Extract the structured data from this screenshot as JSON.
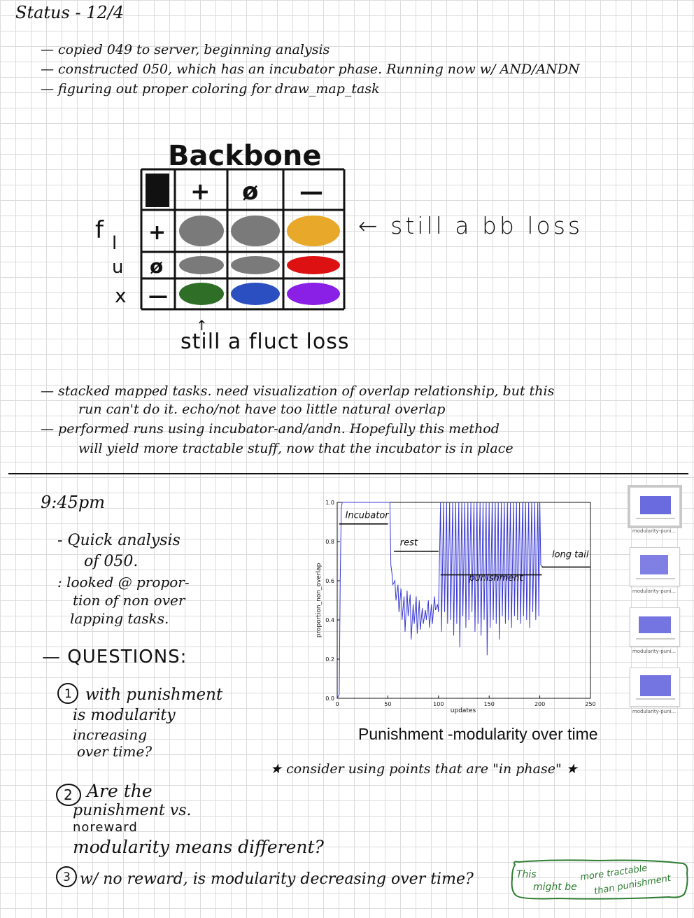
{
  "header": {
    "title": "Status - 12/4"
  },
  "status_notes": [
    "— copied 049 to server, beginning analysis",
    "— constructed 050, which has an incubator phase. Running now w/ AND/ANDN",
    "— figuring out proper coloring for draw_map_task"
  ],
  "grid_figure": {
    "title": "Backbone",
    "column_headers": [
      "+",
      "ø",
      "—"
    ],
    "row_label": "flux",
    "row_label_letters": [
      "f",
      "l",
      "u",
      "x"
    ],
    "row_headers": [
      "+",
      "ø",
      "—"
    ],
    "cell_colors": [
      [
        "#7a7a7a",
        "#7a7a7a",
        "#e8a92a"
      ],
      [
        "#7a7a7a",
        "#7a7a7a",
        "#dd1111"
      ],
      [
        "#2e6e26",
        "#2b4fc0",
        "#8a1fe6"
      ]
    ],
    "annotation_right": "← still a bb loss",
    "annotation_below": "still a fluct loss",
    "arrow_below": "↑"
  },
  "mid_notes": [
    "— stacked mapped tasks. need visualization of overlap relationship, but this",
    "run can't do it. echo/not have too little natural overlap",
    "— performed runs using incubator-and/andn. Hopefully this method",
    "will yield more tractable stuff, now that the incubator is in place"
  ],
  "evening": {
    "time": "9:45pm",
    "analysis_lines": [
      "- Quick analysis",
      "of 050.",
      ": looked @ propor-",
      "tion of non over",
      "lapping tasks."
    ],
    "questions_heading": "— QUESTIONS:",
    "questions": [
      {
        "num": "1",
        "lines": [
          "with punishment",
          "is modularity",
          "increasing",
          "over time?"
        ]
      },
      {
        "num": "2",
        "lines": [
          "Are the",
          "punishment vs.",
          "noreward",
          "modularity means different?"
        ]
      },
      {
        "num": "3",
        "lines": [
          "w/ no reward, is modularity decreasing over time?"
        ]
      }
    ],
    "consider_note": "★ consider using points that are \"in phase\" ★",
    "bubble_note": [
      "This",
      "might be",
      "more tractable",
      "than punishment"
    ],
    "bubble_color": "#2e7d32"
  },
  "thumbnails": [
    {
      "label": "modularity-puni...",
      "selected": true
    },
    {
      "label": "modularity-puni...",
      "selected": false
    },
    {
      "label": "modularity-puni...",
      "selected": false
    },
    {
      "label": "modularity-puni...",
      "selected": false
    }
  ],
  "chart_caption": "Punishment -modularity over time",
  "chart_data": {
    "type": "line",
    "title": "",
    "xlabel": "updates",
    "ylabel": "proportion_non_overlap",
    "xlim": [
      0,
      250
    ],
    "ylim": [
      0.0,
      1.0
    ],
    "xticks": [
      0,
      50,
      100,
      150,
      200,
      250
    ],
    "yticks": [
      0.0,
      0.2,
      0.4,
      0.6,
      0.8,
      1.0
    ],
    "ytick_labels": [
      "0.0",
      "0.2",
      "0.4",
      "0.6",
      "0.8",
      "1.0"
    ],
    "grid": false,
    "series_color": "#3a3ad6",
    "series": [
      {
        "x": [
          0,
          2,
          3,
          4,
          5,
          6,
          10,
          20,
          30,
          40,
          50,
          52,
          53,
          54,
          55,
          57,
          58,
          60,
          61,
          63,
          64,
          66,
          67,
          69,
          70,
          72,
          73,
          75,
          76,
          78,
          79,
          81,
          82,
          84,
          85,
          87,
          88,
          90,
          91,
          93,
          94,
          96,
          97,
          99,
          100,
          102,
          103,
          105,
          106,
          108,
          109,
          111,
          112,
          114,
          115,
          117,
          118,
          120,
          121,
          123,
          124,
          126,
          127,
          129,
          130,
          132,
          133,
          135,
          136,
          138,
          139,
          141,
          142,
          144,
          145,
          147,
          148,
          150,
          151,
          153,
          154,
          156,
          157,
          159,
          160,
          162,
          163,
          165,
          166,
          168,
          169,
          171,
          172,
          174,
          175,
          177,
          178,
          180,
          181,
          183,
          184,
          186,
          187,
          189,
          190,
          192,
          193,
          195,
          196,
          198,
          199,
          200,
          201,
          203,
          205,
          210,
          215,
          220,
          225,
          230,
          235,
          240,
          245,
          250
        ],
        "y": [
          0.0,
          0.02,
          0.6,
          0.97,
          1.0,
          1.0,
          1.0,
          1.0,
          1.0,
          1.0,
          1.0,
          1.0,
          0.68,
          0.64,
          0.58,
          0.6,
          0.5,
          0.58,
          0.44,
          0.56,
          0.4,
          0.52,
          0.34,
          0.55,
          0.42,
          0.53,
          0.3,
          0.48,
          0.38,
          0.52,
          0.33,
          0.5,
          0.35,
          0.46,
          0.38,
          0.45,
          0.4,
          0.5,
          0.36,
          0.48,
          0.38,
          0.52,
          0.45,
          0.48,
          0.44,
          1.0,
          0.34,
          1.0,
          0.44,
          1.0,
          0.38,
          1.0,
          0.4,
          1.0,
          0.32,
          1.0,
          0.38,
          1.0,
          0.26,
          1.0,
          0.42,
          1.0,
          0.36,
          1.0,
          0.4,
          1.0,
          0.44,
          1.0,
          0.34,
          1.0,
          0.38,
          1.0,
          0.32,
          1.0,
          0.4,
          1.0,
          0.22,
          1.0,
          0.36,
          1.0,
          0.4,
          1.0,
          0.38,
          1.0,
          0.3,
          1.0,
          0.42,
          1.0,
          0.38,
          1.0,
          0.4,
          1.0,
          0.36,
          1.0,
          0.42,
          1.0,
          0.4,
          1.0,
          0.38,
          1.0,
          0.42,
          1.0,
          0.4,
          1.0,
          0.36,
          1.0,
          0.44,
          1.0,
          0.4,
          1.0,
          0.42,
          1.0,
          0.68,
          0.67,
          0.67,
          0.67,
          0.67,
          0.67,
          0.67,
          0.67,
          0.67,
          0.67,
          0.67,
          0.67
        ]
      }
    ],
    "annotations": [
      {
        "text": "Incubator",
        "x": 8,
        "y": 0.92
      },
      {
        "text": "rest",
        "x": 62,
        "y": 0.78
      },
      {
        "text": "punishment",
        "x": 130,
        "y": 0.6
      },
      {
        "text": "long tail",
        "x": 212,
        "y": 0.72
      }
    ]
  }
}
